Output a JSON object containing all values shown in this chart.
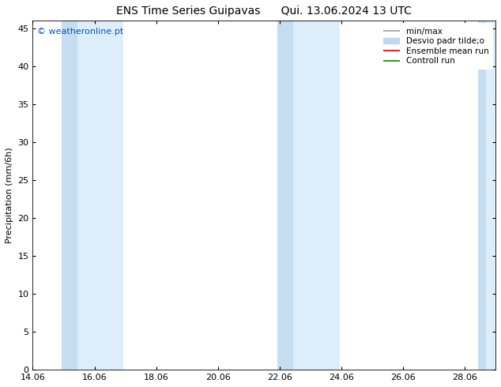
{
  "title_left": "ENS Time Series Guipavas",
  "title_right": "Qui. 13.06.2024 13 UTC",
  "ylabel": "Precipitation (mm/6h)",
  "watermark": "© weatheronline.pt",
  "watermark_color": "#0055cc",
  "xlim_start": 14.06,
  "xlim_end": 29.06,
  "ylim_min": 0,
  "ylim_max": 46,
  "yticks": [
    0,
    5,
    10,
    15,
    20,
    25,
    30,
    35,
    40,
    45
  ],
  "xticks_labels": [
    "14.06",
    "16.06",
    "18.06",
    "20.06",
    "22.06",
    "24.06",
    "26.06",
    "28.06"
  ],
  "xticks_values": [
    14.06,
    16.06,
    18.06,
    20.06,
    22.06,
    24.06,
    26.06,
    28.06
  ],
  "shaded_bands": [
    {
      "x_start": 15.0,
      "x_mid": 15.5,
      "x_end": 17.0
    },
    {
      "x_start": 22.0,
      "x_mid": 22.5,
      "x_end": 24.0
    },
    {
      "x_start": 28.5,
      "x_mid": 28.75,
      "x_end": 29.3
    }
  ],
  "band_color_dark": "#c5ddf0",
  "band_color_light": "#ddeefa",
  "background_color": "#ffffff",
  "legend_entries": [
    {
      "label": "min/max",
      "color": "#a0a0a0",
      "linewidth": 1.2
    },
    {
      "label": "Desvio padr tilde;o",
      "color": "#c0d8ee",
      "linewidth": 6
    },
    {
      "label": "Ensemble mean run",
      "color": "#dd0000",
      "linewidth": 1.2
    },
    {
      "label": "Controll run",
      "color": "#008800",
      "linewidth": 1.2
    }
  ],
  "font_size_title": 10,
  "font_size_axis": 8,
  "font_size_legend": 7.5,
  "font_size_watermark": 8,
  "tick_direction": "in"
}
